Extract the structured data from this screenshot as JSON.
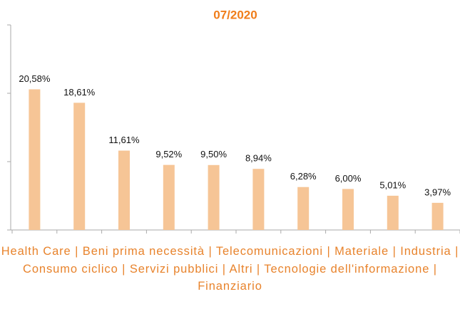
{
  "chart_data": {
    "type": "bar",
    "title": "07/2020",
    "categories": [
      "Health Care",
      "Beni prima necessità",
      "Telecomunicazioni",
      "Materiale",
      "Industria",
      "Consumo ciclico",
      "Servizi pubblici",
      "Altri",
      "Tecnologie dell'informazione",
      "Finanziario"
    ],
    "values": [
      20.58,
      18.61,
      11.61,
      9.52,
      9.5,
      8.94,
      6.28,
      6.0,
      5.01,
      3.97
    ],
    "value_labels": [
      "20,58%",
      "18,61%",
      "11,61%",
      "9,52%",
      "9,50%",
      "8,94%",
      "6,28%",
      "6,00%",
      "5,01%",
      "3,97%"
    ],
    "color": "#f6c596",
    "ylim": [
      0,
      30
    ],
    "yticks": [
      0,
      10,
      20,
      30
    ]
  }
}
